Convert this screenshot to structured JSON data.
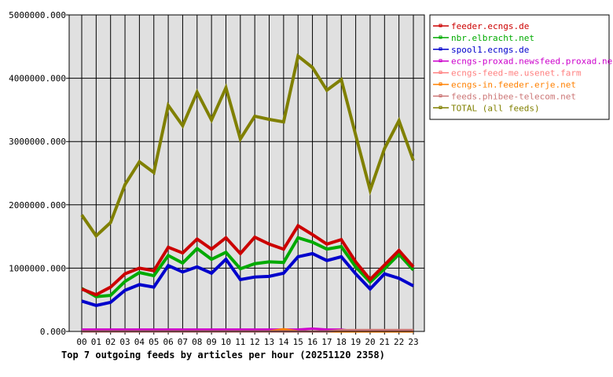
{
  "chart_data": {
    "type": "line",
    "title": "Top 7 outgoing feeds by articles per hour (20251120 2358)",
    "xlabel": "",
    "ylabel": "",
    "ylim": [
      0,
      5000000
    ],
    "yticks": [
      "0.000",
      "1000000.000",
      "2000000.000",
      "3000000.000",
      "4000000.000",
      "5000000.000"
    ],
    "grid": true,
    "legend_position": "right",
    "categories": [
      "00",
      "01",
      "02",
      "03",
      "04",
      "05",
      "06",
      "07",
      "08",
      "09",
      "10",
      "11",
      "12",
      "13",
      "14",
      "15",
      "16",
      "17",
      "18",
      "19",
      "20",
      "21",
      "22",
      "23"
    ],
    "series": [
      {
        "name": "feeder.ecngs.de",
        "color": "#cc0000",
        "values": [
          670000,
          580000,
          700000,
          910000,
          1000000,
          960000,
          1330000,
          1240000,
          1460000,
          1300000,
          1480000,
          1230000,
          1490000,
          1380000,
          1300000,
          1670000,
          1530000,
          1380000,
          1450000,
          1100000,
          820000,
          1050000,
          1280000,
          1020000
        ]
      },
      {
        "name": "nbr.elbracht.net",
        "color": "#00aa00",
        "values": [
          680000,
          550000,
          570000,
          790000,
          930000,
          880000,
          1200000,
          1080000,
          1310000,
          1140000,
          1250000,
          990000,
          1070000,
          1100000,
          1090000,
          1480000,
          1410000,
          1300000,
          1340000,
          1020000,
          780000,
          990000,
          1220000,
          970000
        ]
      },
      {
        "name": "spool1.ecngs.de",
        "color": "#0000cc",
        "values": [
          480000,
          410000,
          460000,
          650000,
          740000,
          700000,
          1040000,
          940000,
          1020000,
          920000,
          1140000,
          820000,
          860000,
          870000,
          920000,
          1180000,
          1230000,
          1120000,
          1180000,
          910000,
          670000,
          910000,
          840000,
          720000
        ]
      },
      {
        "name": "ecngs-proxad.newsfeed.proxad.net",
        "color": "#cc00cc",
        "values": [
          30000,
          30000,
          30000,
          30000,
          30000,
          30000,
          30000,
          30000,
          30000,
          30000,
          30000,
          30000,
          30000,
          30000,
          30000,
          30000,
          45000,
          30000,
          30000,
          0,
          0,
          0,
          0,
          0
        ]
      },
      {
        "name": "ecngs-feed-me.usenet.farm",
        "color": "#ff8080",
        "values": [
          0,
          0,
          0,
          0,
          0,
          0,
          0,
          0,
          0,
          0,
          0,
          0,
          0,
          0,
          0,
          0,
          0,
          0,
          0,
          0,
          0,
          0,
          0,
          0
        ]
      },
      {
        "name": "ecngs-in.feeder.erje.net",
        "color": "#ff8000",
        "values": [
          0,
          0,
          0,
          0,
          0,
          0,
          0,
          0,
          0,
          0,
          0,
          0,
          0,
          0,
          35000,
          0,
          0,
          0,
          0,
          0,
          0,
          0,
          0,
          0
        ]
      },
      {
        "name": "feeds.phibee-telecom.net",
        "color": "#cc7777",
        "values": [
          0,
          0,
          0,
          0,
          0,
          0,
          0,
          0,
          0,
          0,
          0,
          0,
          0,
          0,
          0,
          0,
          0,
          0,
          20000,
          22000,
          22000,
          22000,
          22000,
          22000
        ]
      },
      {
        "name": "TOTAL (all feeds)",
        "color": "#808000",
        "values": [
          1840000,
          1510000,
          1720000,
          2320000,
          2680000,
          2510000,
          3570000,
          3250000,
          3780000,
          3340000,
          3850000,
          3040000,
          3400000,
          3350000,
          3310000,
          4350000,
          4170000,
          3810000,
          3980000,
          3100000,
          2230000,
          2890000,
          3330000,
          2700000
        ]
      }
    ]
  }
}
